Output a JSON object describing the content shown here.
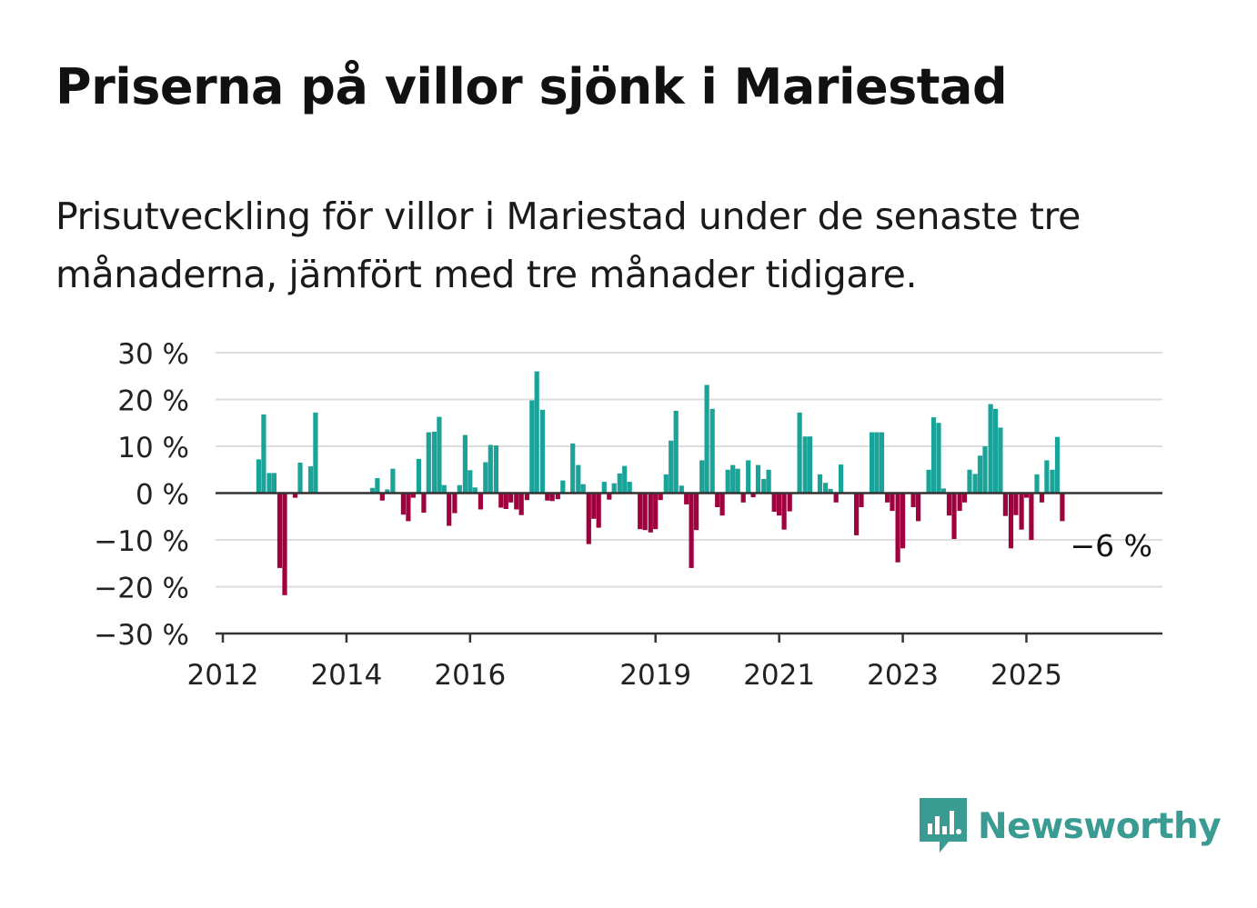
{
  "title": "Priserna på villor sjönk i Mariestad",
  "subtitle": "Prisutveckling för villor i Mariestad under de senaste tre månaderna, jämfört med tre månader tidigare.",
  "brand": {
    "name": "Newsworthy",
    "icon": "newsworthy-bar-chart-icon",
    "color": "#3a9b92"
  },
  "colors": {
    "positive": "#1aa398",
    "negative": "#a0003e",
    "grid": "#dddddd",
    "axis": "#333333"
  },
  "chart_data": {
    "type": "bar",
    "title": "Priserna på villor sjönk i Mariestad",
    "xlabel": "",
    "ylabel": "",
    "ylim": [
      -30,
      30
    ],
    "yticks": [
      30,
      20,
      10,
      0,
      -10,
      -20,
      -30
    ],
    "ytick_labels": [
      "30 %",
      "20 %",
      "10 %",
      "0 %",
      "−10 %",
      "−20 %",
      "−30 %"
    ],
    "xlim": [
      2012,
      2027.2
    ],
    "xticks": [
      2012,
      2014,
      2016,
      2019,
      2021,
      2023,
      2025
    ],
    "xtick_labels": [
      "2012",
      "2014",
      "2016",
      "2019",
      "2021",
      "2023",
      "2025"
    ],
    "grid": true,
    "legend": "none",
    "annotation": {
      "text": "−6 %",
      "x": 2025.58,
      "y": -6
    },
    "bars": [
      {
        "x": 2012.58,
        "v": 7.2
      },
      {
        "x": 2012.66,
        "v": 16.8
      },
      {
        "x": 2012.75,
        "v": 4.3
      },
      {
        "x": 2012.83,
        "v": 4.3
      },
      {
        "x": 2012.92,
        "v": -16
      },
      {
        "x": 2013.0,
        "v": -21.8
      },
      {
        "x": 2013.17,
        "v": -1
      },
      {
        "x": 2013.25,
        "v": 6.5
      },
      {
        "x": 2013.42,
        "v": 5.7
      },
      {
        "x": 2013.5,
        "v": 17.2
      },
      {
        "x": 2014.42,
        "v": 1.1
      },
      {
        "x": 2014.5,
        "v": 3.2
      },
      {
        "x": 2014.58,
        "v": -1.6
      },
      {
        "x": 2014.66,
        "v": 0.8
      },
      {
        "x": 2014.75,
        "v": 5.2
      },
      {
        "x": 2014.92,
        "v": -4.6
      },
      {
        "x": 2015.0,
        "v": -6
      },
      {
        "x": 2015.08,
        "v": -1
      },
      {
        "x": 2015.17,
        "v": 7.3
      },
      {
        "x": 2015.25,
        "v": -4.2
      },
      {
        "x": 2015.33,
        "v": 13
      },
      {
        "x": 2015.42,
        "v": 13.1
      },
      {
        "x": 2015.5,
        "v": 16.3
      },
      {
        "x": 2015.58,
        "v": 1.7
      },
      {
        "x": 2015.66,
        "v": -7
      },
      {
        "x": 2015.75,
        "v": -4.3
      },
      {
        "x": 2015.83,
        "v": 1.7
      },
      {
        "x": 2015.92,
        "v": 12.4
      },
      {
        "x": 2016.0,
        "v": 4.9
      },
      {
        "x": 2016.08,
        "v": 1.2
      },
      {
        "x": 2016.17,
        "v": -3.5
      },
      {
        "x": 2016.25,
        "v": 6.6
      },
      {
        "x": 2016.33,
        "v": 10.3
      },
      {
        "x": 2016.42,
        "v": 10.2
      },
      {
        "x": 2016.5,
        "v": -3.1
      },
      {
        "x": 2016.58,
        "v": -3.4
      },
      {
        "x": 2016.66,
        "v": -2
      },
      {
        "x": 2016.75,
        "v": -3.5
      },
      {
        "x": 2016.83,
        "v": -4.7
      },
      {
        "x": 2016.92,
        "v": -1.5
      },
      {
        "x": 2017.0,
        "v": 19.8
      },
      {
        "x": 2017.08,
        "v": 26
      },
      {
        "x": 2017.17,
        "v": 17.8
      },
      {
        "x": 2017.25,
        "v": -1.6
      },
      {
        "x": 2017.33,
        "v": -1.7
      },
      {
        "x": 2017.42,
        "v": -1.3
      },
      {
        "x": 2017.5,
        "v": 2.7
      },
      {
        "x": 2017.66,
        "v": 10.6
      },
      {
        "x": 2017.75,
        "v": 6
      },
      {
        "x": 2017.83,
        "v": 1.9
      },
      {
        "x": 2017.92,
        "v": -10.9
      },
      {
        "x": 2018.0,
        "v": -5.5
      },
      {
        "x": 2018.08,
        "v": -7.4
      },
      {
        "x": 2018.17,
        "v": 2.4
      },
      {
        "x": 2018.25,
        "v": -1.4
      },
      {
        "x": 2018.33,
        "v": 2.1
      },
      {
        "x": 2018.42,
        "v": 4.2
      },
      {
        "x": 2018.5,
        "v": 5.8
      },
      {
        "x": 2018.58,
        "v": 2.4
      },
      {
        "x": 2018.75,
        "v": -7.7
      },
      {
        "x": 2018.83,
        "v": -7.9
      },
      {
        "x": 2018.92,
        "v": -8.4
      },
      {
        "x": 2019.0,
        "v": -7.7
      },
      {
        "x": 2019.08,
        "v": -1.5
      },
      {
        "x": 2019.17,
        "v": 4
      },
      {
        "x": 2019.25,
        "v": 11.2
      },
      {
        "x": 2019.33,
        "v": 17.6
      },
      {
        "x": 2019.42,
        "v": 1.6
      },
      {
        "x": 2019.5,
        "v": -2.4
      },
      {
        "x": 2019.58,
        "v": -16
      },
      {
        "x": 2019.66,
        "v": -7.9
      },
      {
        "x": 2019.75,
        "v": 7
      },
      {
        "x": 2019.83,
        "v": 23.1
      },
      {
        "x": 2019.92,
        "v": 18
      },
      {
        "x": 2020.0,
        "v": -3
      },
      {
        "x": 2020.08,
        "v": -4.8
      },
      {
        "x": 2020.17,
        "v": 5
      },
      {
        "x": 2020.25,
        "v": 6
      },
      {
        "x": 2020.33,
        "v": 5.2
      },
      {
        "x": 2020.42,
        "v": -2
      },
      {
        "x": 2020.5,
        "v": 7
      },
      {
        "x": 2020.58,
        "v": -0.9
      },
      {
        "x": 2020.66,
        "v": 6
      },
      {
        "x": 2020.75,
        "v": 3
      },
      {
        "x": 2020.83,
        "v": 5
      },
      {
        "x": 2020.92,
        "v": -4
      },
      {
        "x": 2021.0,
        "v": -4.8
      },
      {
        "x": 2021.08,
        "v": -7.8
      },
      {
        "x": 2021.17,
        "v": -3.9
      },
      {
        "x": 2021.33,
        "v": 17.2
      },
      {
        "x": 2021.42,
        "v": 12.1
      },
      {
        "x": 2021.5,
        "v": 12.1
      },
      {
        "x": 2021.66,
        "v": 4
      },
      {
        "x": 2021.75,
        "v": 2.2
      },
      {
        "x": 2021.83,
        "v": 0.9
      },
      {
        "x": 2021.92,
        "v": -2
      },
      {
        "x": 2022.0,
        "v": 6.1
      },
      {
        "x": 2022.25,
        "v": -9
      },
      {
        "x": 2022.33,
        "v": -3
      },
      {
        "x": 2022.5,
        "v": 13
      },
      {
        "x": 2022.58,
        "v": 13
      },
      {
        "x": 2022.66,
        "v": 13
      },
      {
        "x": 2022.75,
        "v": -2
      },
      {
        "x": 2022.83,
        "v": -3.8
      },
      {
        "x": 2022.92,
        "v": -14.8
      },
      {
        "x": 2023.0,
        "v": -11.8
      },
      {
        "x": 2023.17,
        "v": -3
      },
      {
        "x": 2023.25,
        "v": -6
      },
      {
        "x": 2023.42,
        "v": 5
      },
      {
        "x": 2023.5,
        "v": 16.2
      },
      {
        "x": 2023.58,
        "v": 15
      },
      {
        "x": 2023.66,
        "v": 1
      },
      {
        "x": 2023.75,
        "v": -4.8
      },
      {
        "x": 2023.83,
        "v": -9.8
      },
      {
        "x": 2023.92,
        "v": -3.8
      },
      {
        "x": 2024.0,
        "v": -2
      },
      {
        "x": 2024.08,
        "v": 5
      },
      {
        "x": 2024.17,
        "v": 4.1
      },
      {
        "x": 2024.25,
        "v": 8
      },
      {
        "x": 2024.33,
        "v": 10
      },
      {
        "x": 2024.42,
        "v": 19
      },
      {
        "x": 2024.5,
        "v": 18
      },
      {
        "x": 2024.58,
        "v": 14
      },
      {
        "x": 2024.66,
        "v": -4.9
      },
      {
        "x": 2024.75,
        "v": -11.8
      },
      {
        "x": 2024.83,
        "v": -4.7
      },
      {
        "x": 2024.92,
        "v": -7.8
      },
      {
        "x": 2025.0,
        "v": -1
      },
      {
        "x": 2025.08,
        "v": -10
      },
      {
        "x": 2025.17,
        "v": 4
      },
      {
        "x": 2025.25,
        "v": -2
      },
      {
        "x": 2025.33,
        "v": 7
      },
      {
        "x": 2025.42,
        "v": 5
      },
      {
        "x": 2025.5,
        "v": 12
      },
      {
        "x": 2025.58,
        "v": -6
      }
    ]
  }
}
